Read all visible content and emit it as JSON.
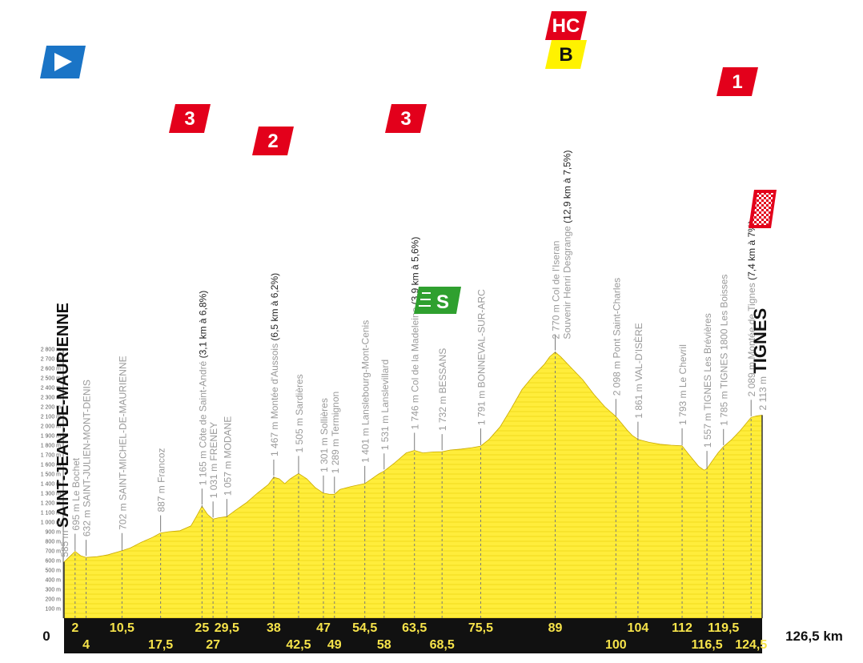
{
  "chart_data": {
    "type": "area",
    "x_unit": "km",
    "y_unit": "m",
    "ylim": [
      0,
      2800
    ],
    "xlim": [
      0,
      126.5
    ],
    "y_ticks": [
      "100 m",
      "200 m",
      "300 m",
      "400 m",
      "500 m",
      "600 m",
      "700 m",
      "800 m",
      "900 m",
      "1 000 m",
      "1 100 m",
      "1 200 m",
      "1 300 m",
      "1 400 m",
      "1 500 m",
      "1 600 m",
      "1 700 m",
      "1 800 m",
      "1 900 m",
      "2 000 m",
      "2 100 m",
      "2 200 m",
      "2 300 m",
      "2 400 m",
      "2 500 m",
      "2 600 m",
      "2 700 m",
      "2 800 m"
    ],
    "profile": [
      [
        0,
        585
      ],
      [
        1,
        640
      ],
      [
        2,
        695
      ],
      [
        3,
        650
      ],
      [
        4,
        632
      ],
      [
        6,
        640
      ],
      [
        8,
        660
      ],
      [
        10.5,
        702
      ],
      [
        12,
        730
      ],
      [
        14,
        790
      ],
      [
        16,
        840
      ],
      [
        17.5,
        887
      ],
      [
        19,
        900
      ],
      [
        21,
        910
      ],
      [
        23,
        960
      ],
      [
        24,
        1060
      ],
      [
        25,
        1165
      ],
      [
        26,
        1080
      ],
      [
        27,
        1031
      ],
      [
        28,
        1045
      ],
      [
        29.5,
        1057
      ],
      [
        31,
        1120
      ],
      [
        33,
        1200
      ],
      [
        35,
        1300
      ],
      [
        37,
        1390
      ],
      [
        38,
        1467
      ],
      [
        39,
        1450
      ],
      [
        40,
        1400
      ],
      [
        41,
        1450
      ],
      [
        42.5,
        1505
      ],
      [
        44,
        1450
      ],
      [
        45.5,
        1360
      ],
      [
        47,
        1301
      ],
      [
        48,
        1290
      ],
      [
        49,
        1289
      ],
      [
        50,
        1340
      ],
      [
        52,
        1370
      ],
      [
        54.5,
        1401
      ],
      [
        56,
        1460
      ],
      [
        57,
        1500
      ],
      [
        58,
        1531
      ],
      [
        60,
        1620
      ],
      [
        62,
        1720
      ],
      [
        63.5,
        1746
      ],
      [
        65,
        1720
      ],
      [
        67,
        1730
      ],
      [
        68.5,
        1732
      ],
      [
        70,
        1750
      ],
      [
        72,
        1760
      ],
      [
        74,
        1775
      ],
      [
        75.5,
        1791
      ],
      [
        77,
        1860
      ],
      [
        79,
        1990
      ],
      [
        81,
        2180
      ],
      [
        83,
        2380
      ],
      [
        85,
        2520
      ],
      [
        87,
        2640
      ],
      [
        88,
        2720
      ],
      [
        89,
        2770
      ],
      [
        90,
        2720
      ],
      [
        92,
        2600
      ],
      [
        94,
        2480
      ],
      [
        96,
        2330
      ],
      [
        98,
        2200
      ],
      [
        100,
        2098
      ],
      [
        101,
        2030
      ],
      [
        102,
        1960
      ],
      [
        103,
        1900
      ],
      [
        104,
        1861
      ],
      [
        106,
        1830
      ],
      [
        108,
        1810
      ],
      [
        110,
        1800
      ],
      [
        112,
        1793
      ],
      [
        113,
        1720
      ],
      [
        114,
        1650
      ],
      [
        115,
        1580
      ],
      [
        116,
        1540
      ],
      [
        116.5,
        1557
      ],
      [
        117.5,
        1640
      ],
      [
        118.5,
        1720
      ],
      [
        119.5,
        1785
      ],
      [
        121,
        1860
      ],
      [
        122.5,
        1950
      ],
      [
        124.5,
        2089
      ],
      [
        125.5,
        2105
      ],
      [
        126.5,
        2113
      ]
    ],
    "km_labels_top": [
      "2",
      "10,5",
      "25",
      "29,5",
      "38",
      "47",
      "54,5",
      "63,5",
      "75,5",
      "89",
      "104",
      "112",
      "119,5"
    ],
    "km_labels_bottom": [
      "4",
      "17,5",
      "27",
      "42,5",
      "49",
      "58",
      "68,5",
      "100",
      "116,5",
      "124,5"
    ],
    "start_km": "0",
    "end_km": "126,5 km",
    "waypoints": [
      {
        "km": 0,
        "alt": "585 m",
        "name": "SAINT-JEAN-DE-MAURIENNE",
        "bold": true
      },
      {
        "km": 2,
        "alt": "695 m",
        "name": "Le Bochet"
      },
      {
        "km": 4,
        "alt": "632 m",
        "name": "SAINT-JULIEN-MONT-DENIS"
      },
      {
        "km": 10.5,
        "alt": "702 m",
        "name": "SAINT-MICHEL-DE-MAURIENNE"
      },
      {
        "km": 17.5,
        "alt": "887 m",
        "name": "Francoz"
      },
      {
        "km": 25,
        "alt": "1 165 m",
        "name": "Côte de Saint-André",
        "climb": "(3,1 km à 6,8%)"
      },
      {
        "km": 27,
        "alt": "1 031 m",
        "name": "FRENEY"
      },
      {
        "km": 29.5,
        "alt": "1 057 m",
        "name": "MODANE"
      },
      {
        "km": 38,
        "alt": "1 467 m",
        "name": "Montée d'Aussois",
        "climb": "(6,5 km à 6,2%)"
      },
      {
        "km": 42.5,
        "alt": "1 505 m",
        "name": "Sardières"
      },
      {
        "km": 47,
        "alt": "1 301 m",
        "name": "Sollières"
      },
      {
        "km": 49,
        "alt": "1 289 m",
        "name": "Termignon"
      },
      {
        "km": 54.5,
        "alt": "1 401 m",
        "name": "Lanslebourg-Mont-Cenis"
      },
      {
        "km": 58,
        "alt": "1 531 m",
        "name": "Lanslevillard"
      },
      {
        "km": 63.5,
        "alt": "1 746 m",
        "name": "Col de la Madeleine",
        "climb": "(3,9 km à 5,6%)"
      },
      {
        "km": 68.5,
        "alt": "1 732 m",
        "name": "BESSANS"
      },
      {
        "km": 75.5,
        "alt": "1 791 m",
        "name": "BONNEVAL-SUR-ARC"
      },
      {
        "km": 89,
        "alt": "2 770 m",
        "name": "Col de l'Iseran",
        "name2": "Souvenir Henri Desgrange",
        "climb": "(12,9 km à 7,5%)"
      },
      {
        "km": 100,
        "alt": "2 098 m",
        "name": "Pont Saint-Charles"
      },
      {
        "km": 104,
        "alt": "1 861 m",
        "name": "VAL-D'ISÈRE"
      },
      {
        "km": 112,
        "alt": "1 793 m",
        "name": "Le Chevril"
      },
      {
        "km": 116.5,
        "alt": "1 557 m",
        "name": "TIGNES Les Brévières"
      },
      {
        "km": 119.5,
        "alt": "1 785 m",
        "name": "TIGNES 1800 Les Boisses"
      },
      {
        "km": 124.5,
        "alt": "2 089 m",
        "name": "Montée de Tignes",
        "climb": "(7,4 km à 7%)"
      },
      {
        "km": 126.5,
        "alt": "2 113 m",
        "name": "TIGNES",
        "bold": true
      }
    ],
    "climb_badges": [
      {
        "category": "3",
        "km": 25
      },
      {
        "category": "2",
        "km": 38
      },
      {
        "category": "3",
        "km": 63.5
      },
      {
        "category": "HC",
        "km": 89
      },
      {
        "category": "B",
        "km": 89
      },
      {
        "category": "1",
        "km": 124.5
      }
    ],
    "sprint_badge": {
      "label": "S",
      "km": 68.5
    },
    "colors": {
      "profile_fill": "#ffed3b",
      "stripe": "#e2c700",
      "km_bar": "#111111",
      "km_text": "#f6e34a",
      "badge_red": "#e3001b",
      "badge_yellow": "#fff200",
      "start_blue": "#1a74c6",
      "sprint_green": "#2fa02f",
      "label_grey": "#9a9a9a"
    },
    "icons": {
      "start": "start-flag-icon",
      "finish": "finish-flag-icon",
      "sprint": "sprint-icon"
    }
  }
}
